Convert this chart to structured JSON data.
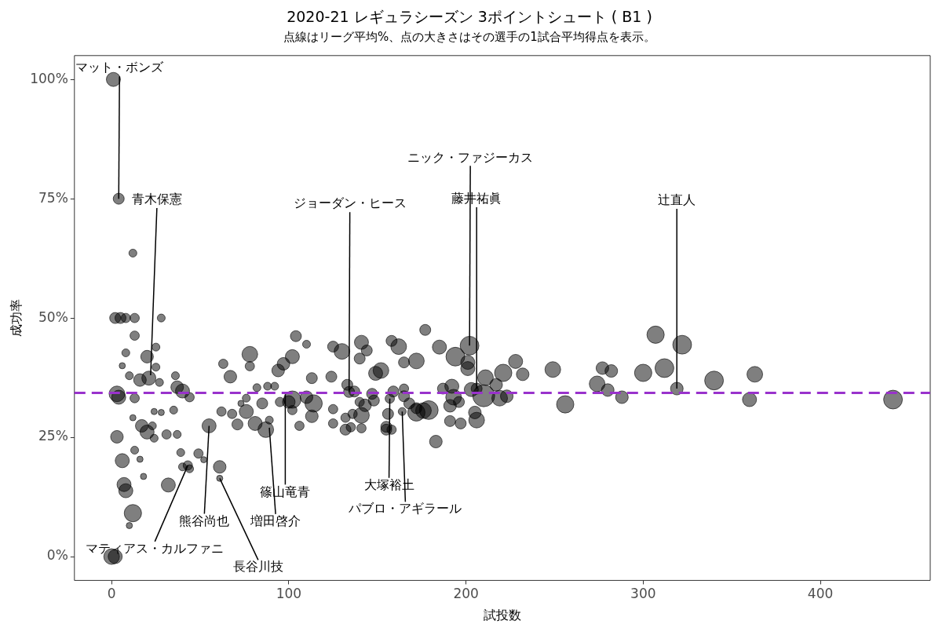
{
  "chart_data": {
    "type": "bubble",
    "title": "2020-21 レギュラシーズン 3ポイントシュート ( B1 )",
    "subtitle": "点線はリーグ平均%、点の大きさはその選手の1試合平均得点を表示。",
    "xlabel": "試投数",
    "ylabel": "成功率",
    "xlim": [
      -21,
      462
    ],
    "xticks": [
      0,
      100,
      200,
      300,
      400
    ],
    "ylim": [
      -5,
      105
    ],
    "yticks": [
      {
        "value": 0,
        "label": "0%"
      },
      {
        "value": 25,
        "label": "25%"
      },
      {
        "value": 50,
        "label": "50%"
      },
      {
        "value": 75,
        "label": "75%"
      },
      {
        "value": 100,
        "label": "100%"
      }
    ],
    "grid": false,
    "legend": false,
    "marker": "circle",
    "ref_lines": [
      {
        "axis": "y",
        "value": 34.3,
        "color": "#9932cc",
        "line_style": "dashed"
      }
    ],
    "annotations": [
      {
        "text": "マット・ボンズ",
        "x": 4,
        "y": 75
      },
      {
        "text": "青木保憲",
        "x": 22,
        "y": 38
      },
      {
        "text": "ジョーダン・ヒース",
        "x": 134,
        "y": 34.5
      },
      {
        "text": "ニック・ファジーカス",
        "x": 202,
        "y": 44.2
      },
      {
        "text": "藤井祐眞",
        "x": 206,
        "y": 35.2
      },
      {
        "text": "辻直人",
        "x": 319,
        "y": 35.2
      },
      {
        "text": "大塚裕土",
        "x": 157,
        "y": 33.1
      },
      {
        "text": "パブロ・アギラール",
        "x": 164,
        "y": 30.4
      },
      {
        "text": "篠山竜青",
        "x": 98,
        "y": 34
      },
      {
        "text": "増田啓介",
        "x": 89,
        "y": 27
      },
      {
        "text": "熊谷尚也",
        "x": 55,
        "y": 27.4
      },
      {
        "text": "長谷川技",
        "x": 61,
        "y": 16.4
      },
      {
        "text": "マティアス・カルファニ",
        "x": 43,
        "y": 19.1
      }
    ],
    "series": [
      {
        "color": "#000000",
        "x": [
          1,
          4,
          12,
          2,
          5,
          8,
          13,
          28,
          13,
          8,
          25,
          20,
          6,
          25,
          10,
          16,
          21,
          3,
          4,
          13,
          27,
          36,
          40,
          44,
          37,
          35,
          24,
          28,
          12,
          17,
          23,
          3,
          20,
          24,
          6,
          31,
          37,
          13,
          16,
          18,
          44,
          7,
          8,
          12,
          10,
          40,
          32,
          0,
          2,
          55,
          61,
          61,
          43,
          49,
          52,
          39,
          104,
          110,
          78,
          78,
          63,
          67,
          102,
          97,
          94,
          113,
          102,
          82,
          88,
          92,
          76,
          73,
          89,
          81,
          87,
          62,
          68,
          71,
          76,
          85,
          95,
          110,
          106,
          102,
          114,
          100,
          113,
          125,
          125,
          124,
          125,
          130,
          141,
          140,
          144,
          149,
          133,
          134,
          137,
          140,
          141,
          143,
          147,
          136,
          132,
          132,
          135,
          141,
          155,
          148,
          152,
          158,
          162,
          165,
          165,
          168,
          172,
          176,
          159,
          156,
          155,
          158,
          157,
          164,
          177,
          185,
          172,
          202,
          194,
          201,
          201,
          228,
          232,
          221,
          249,
          211,
          217,
          187,
          192,
          193,
          196,
          191,
          203,
          210,
          206,
          219,
          223,
          256,
          179,
          172,
          165,
          205,
          206,
          191,
          197,
          183,
          277,
          282,
          274,
          280,
          288,
          307,
          300,
          312,
          322,
          319,
          340,
          363,
          360,
          441
        ],
        "values": [
          100,
          75,
          63.6,
          50,
          50,
          50,
          50,
          50,
          46.3,
          42.7,
          43.9,
          41.9,
          40,
          39.7,
          37.9,
          37,
          37.4,
          34.1,
          33.4,
          33.2,
          36.5,
          37.9,
          34.7,
          33.4,
          35.5,
          30.7,
          30.4,
          30.2,
          29.1,
          27.4,
          27.4,
          25.1,
          26.1,
          24.8,
          20.1,
          25.6,
          25.6,
          22.3,
          20.4,
          16.8,
          18.4,
          15.1,
          13.8,
          9.1,
          6.5,
          18.8,
          15,
          0,
          0,
          27.4,
          18.8,
          16.4,
          19.1,
          21.6,
          20.3,
          21.8,
          46.2,
          44.5,
          42.4,
          39.9,
          40.4,
          37.7,
          41.9,
          40.4,
          39,
          37.4,
          32.9,
          35.4,
          35.7,
          35.7,
          33.2,
          32.1,
          28.6,
          27.9,
          26.6,
          30.4,
          29.9,
          27.7,
          30.4,
          32.1,
          32.4,
          33.4,
          27.4,
          30.7,
          32.1,
          32.4,
          29.4,
          27.9,
          30.9,
          37.7,
          44,
          43,
          44.9,
          41.5,
          43.2,
          38.4,
          36,
          34.5,
          34.6,
          32.4,
          29.6,
          31.7,
          34.1,
          29.9,
          29.1,
          26.6,
          27.1,
          26.9,
          26.6,
          32.7,
          39,
          45.2,
          44,
          40.7,
          35.2,
          32.1,
          31.1,
          30.6,
          34.6,
          29.9,
          27.2,
          26.6,
          33.1,
          30.4,
          47.5,
          43.9,
          41,
          44.2,
          41.9,
          40.7,
          39.4,
          40.9,
          38.2,
          38.5,
          39.2,
          37.5,
          36,
          35.2,
          35.7,
          33.4,
          32.4,
          31.6,
          35,
          33.7,
          35.2,
          33.2,
          33.6,
          31.9,
          30.7,
          30.2,
          33.6,
          30.2,
          28.6,
          28.4,
          27.9,
          24.1,
          39.5,
          38.9,
          36.2,
          34.9,
          33.4,
          46.5,
          38.5,
          39.5,
          44.4,
          35.2,
          36.9,
          38.2,
          32.9,
          32.9
        ],
        "sizes": [
          0.41,
          0.25,
          0.13,
          0.25,
          0.25,
          0.18,
          0.18,
          0.13,
          0.18,
          0.13,
          0.13,
          0.33,
          0.08,
          0.13,
          0.13,
          0.33,
          0.41,
          0.51,
          0.41,
          0.18,
          0.13,
          0.13,
          0.41,
          0.18,
          0.33,
          0.13,
          0.08,
          0.08,
          0.08,
          0.33,
          0.13,
          0.33,
          0.41,
          0.13,
          0.41,
          0.18,
          0.13,
          0.13,
          0.08,
          0.08,
          0.13,
          0.41,
          0.41,
          0.62,
          0.08,
          0.13,
          0.41,
          0.51,
          0.41,
          0.41,
          0.33,
          0.08,
          0.18,
          0.18,
          0.08,
          0.13,
          0.25,
          0.13,
          0.51,
          0.18,
          0.18,
          0.33,
          0.41,
          0.33,
          0.33,
          0.25,
          0.62,
          0.13,
          0.13,
          0.13,
          0.13,
          0.08,
          0.13,
          0.41,
          0.51,
          0.18,
          0.18,
          0.25,
          0.41,
          0.25,
          0.18,
          0.33,
          0.18,
          0.18,
          0.62,
          0.33,
          0.33,
          0.18,
          0.18,
          0.25,
          0.25,
          0.51,
          0.41,
          0.25,
          0.25,
          0.41,
          0.25,
          0.25,
          0.25,
          0.18,
          0.51,
          0.33,
          0.25,
          0.18,
          0.18,
          0.25,
          0.18,
          0.18,
          0.25,
          0.25,
          0.51,
          0.25,
          0.51,
          0.25,
          0.18,
          0.25,
          0.25,
          0.51,
          0.25,
          0.25,
          0.25,
          0.18,
          0.18,
          0.13,
          0.25,
          0.41,
          0.51,
          0.73,
          0.73,
          0.41,
          0.41,
          0.41,
          0.33,
          0.62,
          0.51,
          0.51,
          0.33,
          0.25,
          0.41,
          0.51,
          0.25,
          0.33,
          0.41,
          1,
          0.25,
          0.51,
          0.33,
          0.62,
          0.73,
          0.62,
          0.25,
          0.33,
          0.51,
          0.25,
          0.25,
          0.33,
          0.33,
          0.33,
          0.51,
          0.33,
          0.33,
          0.62,
          0.62,
          0.73,
          0.73,
          0.33,
          0.73,
          0.51,
          0.41,
          0.73
        ]
      }
    ]
  }
}
